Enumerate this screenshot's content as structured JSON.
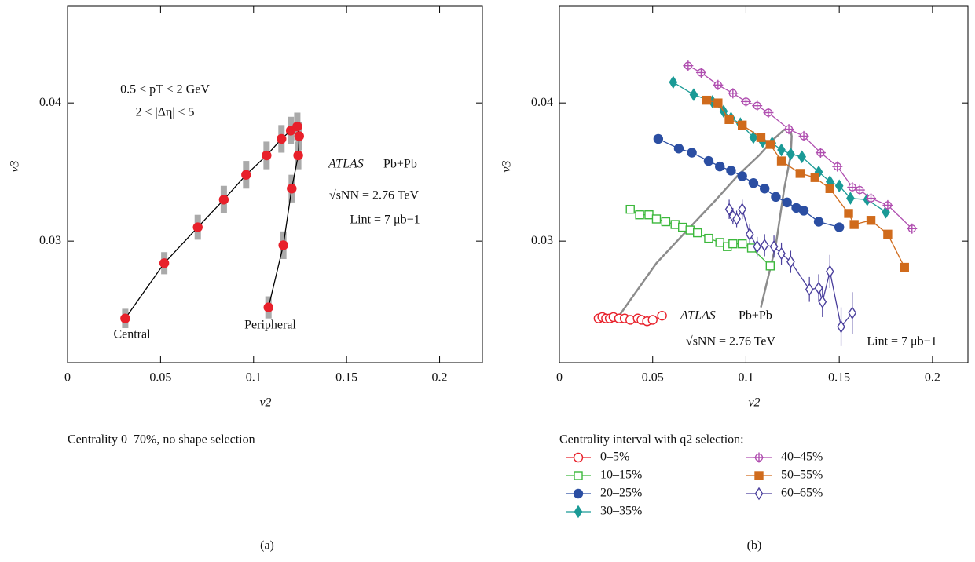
{
  "chart_data": [
    {
      "type": "scatter",
      "xlabel": "v2",
      "ylabel": "v3",
      "xlim": [
        0,
        0.223
      ],
      "ylim": [
        0.0212,
        0.047
      ],
      "xticks": [
        0,
        0.05,
        0.1,
        0.15,
        0.2
      ],
      "yticks": [
        0.03,
        0.04
      ],
      "caption": "Centrality 0–70%, no shape selection",
      "panel_label": "(a)",
      "annotations": [
        "0.5 < pT < 2 GeV",
        "2 < |Δη| < 5",
        "ATLAS",
        "Pb+Pb",
        "√sNN = 2.76 TeV",
        "Lint = 7 μb−1",
        "Central",
        "Peripheral"
      ],
      "error_color": "#aaaaaa",
      "line_color": "#000000",
      "series": [
        {
          "color": "#e8202a",
          "marker": "circle",
          "x": [
            0.031,
            0.052,
            0.07,
            0.084,
            0.096,
            0.107,
            0.115,
            0.12,
            0.1235,
            0.1245,
            0.124,
            0.1205,
            0.116,
            0.108
          ],
          "values": [
            0.0244,
            0.0284,
            0.031,
            0.033,
            0.0348,
            0.0362,
            0.0374,
            0.038,
            0.0383,
            0.0376,
            0.0362,
            0.0338,
            0.0297,
            0.0252
          ],
          "errors": [
            0.0007,
            0.0008,
            0.0009,
            0.001,
            0.001,
            0.001,
            0.001,
            0.001,
            0.001,
            0.001,
            0.001,
            0.001,
            0.001,
            0.0008
          ]
        }
      ]
    },
    {
      "type": "scatter",
      "xlabel": "v2",
      "ylabel": "v3",
      "xlim": [
        0,
        0.219
      ],
      "ylim": [
        0.0212,
        0.047
      ],
      "xticks": [
        0,
        0.05,
        0.1,
        0.15,
        0.2
      ],
      "yticks": [
        0.03,
        0.04
      ],
      "panel_label": "(b)",
      "legend_title": "Centrality interval with q2 selection:",
      "annotations": [
        "ATLAS",
        "Pb+Pb",
        "√sNN = 2.76 TeV",
        "Lint = 7 μb−1"
      ],
      "reference_color": "#8c8c8c",
      "series": [
        {
          "name": "0–5%",
          "color": "#e8202a",
          "marker": "circle-open",
          "x": [
            0.021,
            0.023,
            0.025,
            0.027,
            0.029,
            0.032,
            0.035,
            0.038,
            0.042,
            0.044,
            0.047,
            0.05,
            0.055
          ],
          "values": [
            0.0244,
            0.0245,
            0.0244,
            0.0244,
            0.0245,
            0.0244,
            0.0244,
            0.0243,
            0.0244,
            0.0243,
            0.0242,
            0.0243,
            0.0246
          ]
        },
        {
          "name": "10–15%",
          "color": "#3cb83c",
          "marker": "square-open",
          "x": [
            0.038,
            0.043,
            0.048,
            0.052,
            0.057,
            0.062,
            0.066,
            0.07,
            0.074,
            0.08,
            0.086,
            0.09,
            0.093,
            0.098,
            0.103,
            0.113
          ],
          "values": [
            0.0323,
            0.0319,
            0.0319,
            0.0316,
            0.0314,
            0.0312,
            0.031,
            0.0308,
            0.0306,
            0.0302,
            0.0299,
            0.0296,
            0.0298,
            0.0298,
            0.0295,
            0.0282
          ]
        },
        {
          "name": "20–25%",
          "color": "#2b4ea2",
          "marker": "circle",
          "x": [
            0.053,
            0.064,
            0.071,
            0.08,
            0.086,
            0.092,
            0.098,
            0.104,
            0.11,
            0.116,
            0.122,
            0.127,
            0.131,
            0.139,
            0.15
          ],
          "values": [
            0.0374,
            0.0367,
            0.0364,
            0.0358,
            0.0354,
            0.0351,
            0.0347,
            0.0342,
            0.0338,
            0.0332,
            0.0328,
            0.0324,
            0.0322,
            0.0314,
            0.031
          ]
        },
        {
          "name": "30–35%",
          "color": "#1a9a96",
          "marker": "diamond",
          "x": [
            0.061,
            0.072,
            0.082,
            0.088,
            0.092,
            0.097,
            0.104,
            0.109,
            0.114,
            0.119,
            0.124,
            0.13,
            0.139,
            0.145,
            0.15,
            0.156,
            0.165,
            0.175
          ],
          "values": [
            0.0415,
            0.0406,
            0.0401,
            0.0394,
            0.0389,
            0.0385,
            0.0375,
            0.0372,
            0.0371,
            0.0366,
            0.0363,
            0.0361,
            0.035,
            0.0343,
            0.034,
            0.0331,
            0.033,
            0.0321
          ]
        },
        {
          "name": "40–45%",
          "color": "#b04fb0",
          "marker": "cross-circle",
          "x": [
            0.069,
            0.076,
            0.085,
            0.093,
            0.1,
            0.106,
            0.112,
            0.123,
            0.131,
            0.14,
            0.149,
            0.157,
            0.161,
            0.167,
            0.176,
            0.189
          ],
          "values": [
            0.0427,
            0.0422,
            0.0413,
            0.0407,
            0.0401,
            0.0398,
            0.0393,
            0.0381,
            0.0376,
            0.0364,
            0.0354,
            0.0339,
            0.0337,
            0.0331,
            0.0326,
            0.0309
          ]
        },
        {
          "name": "50–55%",
          "color": "#d06b1c",
          "marker": "square",
          "x": [
            0.079,
            0.085,
            0.091,
            0.098,
            0.108,
            0.113,
            0.119,
            0.129,
            0.137,
            0.145,
            0.155,
            0.158,
            0.167,
            0.176,
            0.185
          ],
          "values": [
            0.0402,
            0.04,
            0.0388,
            0.0384,
            0.0375,
            0.037,
            0.0358,
            0.0349,
            0.0346,
            0.0338,
            0.032,
            0.0312,
            0.0315,
            0.0305,
            0.0281
          ]
        },
        {
          "name": "60–65%",
          "color": "#4a3f9c",
          "marker": "diamond-open",
          "x": [
            0.091,
            0.093,
            0.095,
            0.098,
            0.102,
            0.106,
            0.11,
            0.115,
            0.119,
            0.124,
            0.134,
            0.139,
            0.141,
            0.145,
            0.151,
            0.157
          ],
          "values": [
            0.0323,
            0.0318,
            0.0316,
            0.0323,
            0.0305,
            0.0296,
            0.0297,
            0.0296,
            0.0291,
            0.0285,
            0.0265,
            0.0266,
            0.0256,
            0.0278,
            0.0238,
            0.0248
          ],
          "errors": [
            0.0007,
            0.0006,
            0.0006,
            0.0007,
            0.0007,
            0.0007,
            0.0008,
            0.0008,
            0.0008,
            0.0008,
            0.0009,
            0.001,
            0.0011,
            0.0012,
            0.0014,
            0.0015
          ]
        }
      ]
    }
  ]
}
